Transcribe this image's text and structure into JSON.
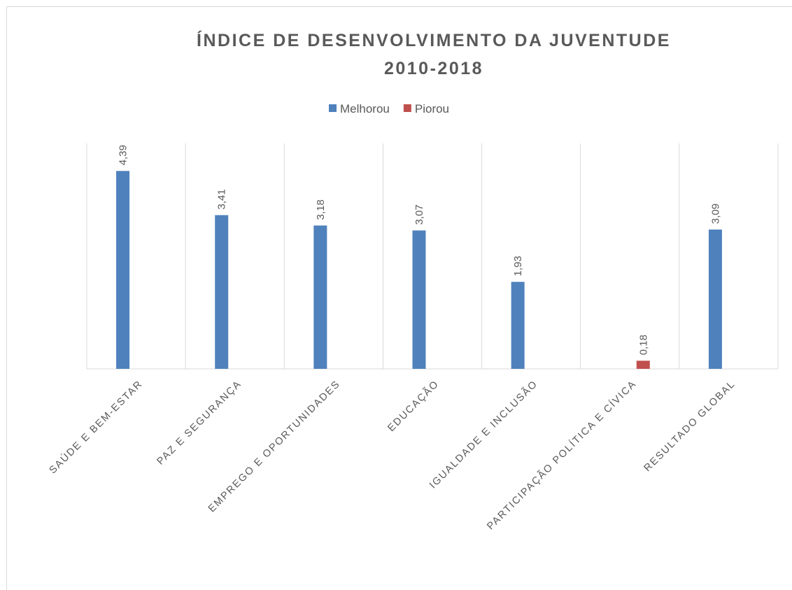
{
  "chart_data": {
    "type": "bar",
    "title": [
      "ÍNDICE DE DESENVOLVIMENTO DA JUVENTUDE",
      "2010-2018"
    ],
    "categories": [
      "SAÚDE E BEM-ESTAR",
      "PAZ E SEGURANÇA",
      "EMPREGO E OPORTUNIDADES",
      "EDUCAÇÃO",
      "IGUALDADE E INCLUSÃO",
      "PARTICIPAÇÃO POLÍTICA E CÍVICA",
      "RESULTADO GLOBAL"
    ],
    "series": [
      {
        "name": "Melhorou",
        "color": "#4f81bd",
        "values": [
          4.39,
          3.41,
          3.18,
          3.07,
          1.93,
          null,
          3.09
        ],
        "value_labels": [
          "4,39",
          "3,41",
          "3,18",
          "3,07",
          "1,93",
          null,
          "3,09"
        ]
      },
      {
        "name": "Piorou",
        "color": "#c0504d",
        "values": [
          null,
          null,
          null,
          null,
          null,
          0.18,
          null
        ],
        "value_labels": [
          null,
          null,
          null,
          null,
          null,
          "0,18",
          null
        ]
      }
    ],
    "ylim": [
      0,
      5
    ],
    "legend": "top"
  }
}
